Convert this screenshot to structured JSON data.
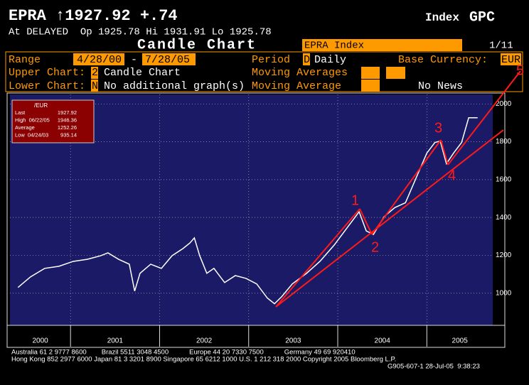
{
  "header": {
    "quote": "EPRA ↑1927.92 +.74",
    "index": "Index",
    "function": "GPC",
    "delayed": "At DELAYED  Op 1925.78 Hi 1931.91 Lo 1925.78",
    "screen": "Candle Chart",
    "security": "EPRA Index",
    "page": "1/11"
  },
  "settings": {
    "range_label": "Range",
    "range_start": "4/28/00",
    "range_sep": "-",
    "range_end": "7/28/05",
    "period_label": "Period",
    "period_code": "D",
    "period": "Daily",
    "currency_label": "Base Currency:",
    "currency": "EUR",
    "upper_label": "Upper Chart:",
    "upper_code": "2",
    "upper": "Candle Chart",
    "ma_label": "Moving Averages",
    "lower_label": "Lower Chart:",
    "lower_code": "N",
    "lower": "No additional graph(s)",
    "ma2_label": "Moving Average",
    "news": "No News"
  },
  "legend_box": {
    "title": "/EUR",
    "rows": [
      [
        "Last",
        "1927.92"
      ],
      [
        "High  06/22/05",
        "1946.36"
      ],
      [
        "Average",
        "1252.26"
      ],
      [
        "Low  04/24/03",
        "935.14"
      ]
    ]
  },
  "chart_data": {
    "type": "line",
    "xlim": [
      2000.32,
      2005.74
    ],
    "ylim": [
      830,
      2050
    ],
    "xticks": [
      2001,
      2002,
      2003,
      2004,
      2005
    ],
    "year_labels": [
      "2000",
      "2001",
      "2002",
      "2003",
      "2004",
      "2005"
    ],
    "yticks": [
      1000,
      1200,
      1400,
      1600,
      1800,
      2000
    ],
    "grid": true,
    "annotations": [
      "1",
      "2",
      "3",
      "4",
      "5"
    ],
    "series": [
      {
        "color": "#ffffff",
        "x": [
          2000.41,
          2000.55,
          2000.71,
          2000.87,
          2001.03,
          2001.19,
          2001.34,
          2001.42,
          2001.54,
          2001.66,
          2001.72,
          2001.78,
          2001.9,
          2002.02,
          2002.14,
          2002.26,
          2002.34,
          2002.39,
          2002.45,
          2002.53,
          2002.61,
          2002.73,
          2002.85,
          2002.97,
          2003.09,
          2003.21,
          2003.29,
          2003.37,
          2003.49,
          2003.65,
          2003.8,
          2003.96,
          2004.12,
          2004.24,
          2004.32,
          2004.4,
          2004.52,
          2004.64,
          2004.76,
          2004.88,
          2005.0,
          2005.09,
          2005.15,
          2005.22,
          2005.3,
          2005.39,
          2005.47,
          2005.53,
          2005.57
        ],
        "values": [
          1030,
          1086,
          1131,
          1142,
          1168,
          1179,
          1198,
          1213,
          1179,
          1153,
          1011,
          1105,
          1153,
          1131,
          1198,
          1235,
          1265,
          1292,
          1198,
          1105,
          1131,
          1056,
          1093,
          1078,
          1049,
          974,
          944,
          981,
          1049,
          1105,
          1168,
          1254,
          1355,
          1430,
          1329,
          1310,
          1404,
          1452,
          1478,
          1609,
          1740,
          1796,
          1804,
          1684,
          1740,
          1796,
          1927,
          1927,
          1927
        ]
      }
    ]
  },
  "footer": [
    "Australia 61 2 9777 8600        Brazil 5511 3048 4500           Europe 44 20 7330 7500           Germany 49 69 920410",
    "Hong Kong 852 2977 6000 Japan 81 3 3201 8900 Singapore 65 6212 1000 U.S. 1 212 318 2000 Copyright 2005 Bloomberg L.P.",
    "G905-607-1 28-Jul-05  9:38:23"
  ]
}
